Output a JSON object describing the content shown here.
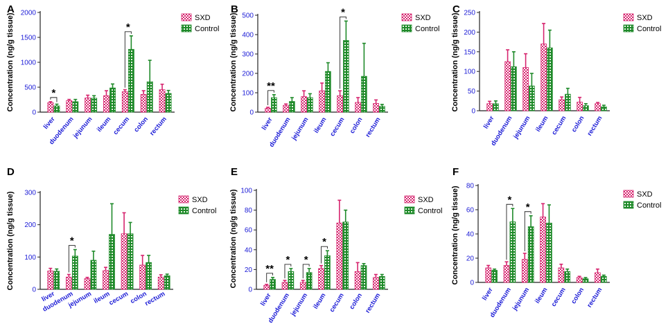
{
  "colors": {
    "sxd": "#d6246e",
    "control": "#1f8a2a",
    "axis_text": "#1a1ad6",
    "axis_line": "#222222",
    "label": "#000000"
  },
  "chart_data": [
    {
      "panel": "A",
      "type": "bar",
      "title": "",
      "ylabel": "Concentration  (ng/g tissue)",
      "xlabel": "",
      "ylim": [
        0,
        2000
      ],
      "yticks": [
        0,
        500,
        1000,
        1500,
        2000
      ],
      "categories": [
        "liver",
        "duodenum",
        "jejunum",
        "ileum",
        "cecum",
        "colon",
        "rectum"
      ],
      "series": [
        {
          "name": "SXD",
          "values": [
            190,
            230,
            285,
            330,
            410,
            355,
            450
          ],
          "errors": [
            20,
            25,
            55,
            100,
            40,
            75,
            110
          ]
        },
        {
          "name": "Control",
          "values": [
            125,
            210,
            280,
            485,
            1260,
            610,
            375
          ],
          "errors": [
            35,
            45,
            50,
            80,
            270,
            430,
            60
          ]
        }
      ],
      "legend": [
        "SXD",
        "Control"
      ],
      "annotations": [
        {
          "text": "*",
          "category_index": 0
        },
        {
          "text": "*",
          "category_index": 4
        }
      ]
    },
    {
      "panel": "B",
      "type": "bar",
      "title": "",
      "ylabel": "Concentration  (ng/g tissue)",
      "xlabel": "",
      "ylim": [
        0,
        500
      ],
      "yticks": [
        0,
        100,
        200,
        300,
        400,
        500
      ],
      "categories": [
        "liver",
        "duodenum",
        "jejunum",
        "ileum",
        "cecum",
        "colon",
        "rectum"
      ],
      "series": [
        {
          "name": "SXD",
          "values": [
            20,
            35,
            80,
            110,
            85,
            50,
            45
          ],
          "errors": [
            5,
            7,
            30,
            40,
            25,
            25,
            18
          ]
        },
        {
          "name": "Control",
          "values": [
            75,
            55,
            75,
            210,
            370,
            185,
            30
          ],
          "errors": [
            15,
            20,
            20,
            45,
            100,
            170,
            10
          ]
        }
      ],
      "legend": [
        "SXD",
        "Control"
      ],
      "annotations": [
        {
          "text": "**",
          "category_index": 0
        },
        {
          "text": "*",
          "category_index": 4
        }
      ]
    },
    {
      "panel": "C",
      "type": "bar",
      "title": "",
      "ylabel": "Concentration  (ng/g tissue)",
      "xlabel": "",
      "ylim": [
        0,
        250
      ],
      "yticks": [
        0,
        50,
        100,
        150,
        200,
        250
      ],
      "categories": [
        "liver",
        "duodenum",
        "jejunum",
        "ileum",
        "cecum",
        "colon",
        "rectum"
      ],
      "series": [
        {
          "name": "SXD",
          "values": [
            18,
            125,
            110,
            170,
            28,
            22,
            18
          ],
          "errors": [
            6,
            30,
            35,
            52,
            7,
            12,
            3
          ]
        },
        {
          "name": "Control",
          "values": [
            18,
            112,
            63,
            160,
            42,
            13,
            10
          ],
          "errors": [
            7,
            38,
            32,
            45,
            15,
            5,
            4
          ]
        }
      ],
      "legend": [
        "SXD",
        "Control"
      ],
      "annotations": []
    },
    {
      "panel": "D",
      "type": "bar",
      "title": "",
      "ylabel": "Concentration  (ng/g tissue)",
      "xlabel": "",
      "ylim": [
        0,
        300
      ],
      "yticks": [
        0,
        100,
        200,
        300
      ],
      "categories": [
        "liver",
        "duodenum",
        "jejunum",
        "ileum",
        "cecum",
        "colon",
        "rectum"
      ],
      "series": [
        {
          "name": "SXD",
          "values": [
            57,
            38,
            33,
            58,
            172,
            75,
            38
          ],
          "errors": [
            8,
            8,
            4,
            10,
            65,
            30,
            7
          ]
        },
        {
          "name": "Control",
          "values": [
            56,
            103,
            90,
            170,
            172,
            83,
            42
          ],
          "errors": [
            7,
            20,
            28,
            95,
            35,
            22,
            5
          ]
        }
      ],
      "legend": [
        "SXD",
        "Control"
      ],
      "annotations": [
        {
          "text": "*",
          "category_index": 1
        }
      ]
    },
    {
      "panel": "E",
      "type": "bar",
      "title": "",
      "ylabel": "Concentration  (ng/g tissue)",
      "xlabel": "",
      "ylim": [
        0,
        100
      ],
      "yticks": [
        0,
        20,
        40,
        60,
        80,
        100
      ],
      "categories": [
        "liver",
        "duodenum",
        "jejunum",
        "ileum",
        "cecum",
        "colon",
        "rectum"
      ],
      "series": [
        {
          "name": "SXD",
          "values": [
            4,
            7,
            7,
            21,
            67,
            18,
            12
          ],
          "errors": [
            1,
            2,
            2,
            3,
            23,
            9,
            3
          ]
        },
        {
          "name": "Control",
          "values": [
            10,
            18,
            17,
            34,
            68,
            24,
            13
          ],
          "errors": [
            2,
            3,
            4,
            5,
            12,
            2,
            2
          ]
        }
      ],
      "legend": [
        "SXD",
        "Control"
      ],
      "annotations": [
        {
          "text": "**",
          "category_index": 0
        },
        {
          "text": "*",
          "category_index": 1
        },
        {
          "text": "*",
          "category_index": 2
        },
        {
          "text": "*",
          "category_index": 3
        }
      ]
    },
    {
      "panel": "F",
      "type": "bar",
      "title": "",
      "ylabel": "Concentration (ng/g tissue)",
      "xlabel": "",
      "ylim": [
        0,
        80
      ],
      "yticks": [
        0,
        20,
        40,
        60,
        80
      ],
      "categories": [
        "liver",
        "duodenum",
        "jejunum",
        "ileum",
        "cecum",
        "colon",
        "rectum"
      ],
      "series": [
        {
          "name": "SXD",
          "values": [
            12,
            14,
            19,
            54,
            12,
            4,
            8
          ],
          "errors": [
            2,
            3,
            5,
            11,
            3,
            1,
            3
          ]
        },
        {
          "name": "Control",
          "values": [
            10,
            50,
            46,
            49,
            9,
            3,
            5
          ],
          "errors": [
            1,
            11,
            9,
            15,
            2,
            1,
            1
          ]
        }
      ],
      "legend": [
        "SXD",
        "Control"
      ],
      "annotations": [
        {
          "text": "*",
          "category_index": 1
        },
        {
          "text": "*",
          "category_index": 2
        }
      ]
    }
  ]
}
